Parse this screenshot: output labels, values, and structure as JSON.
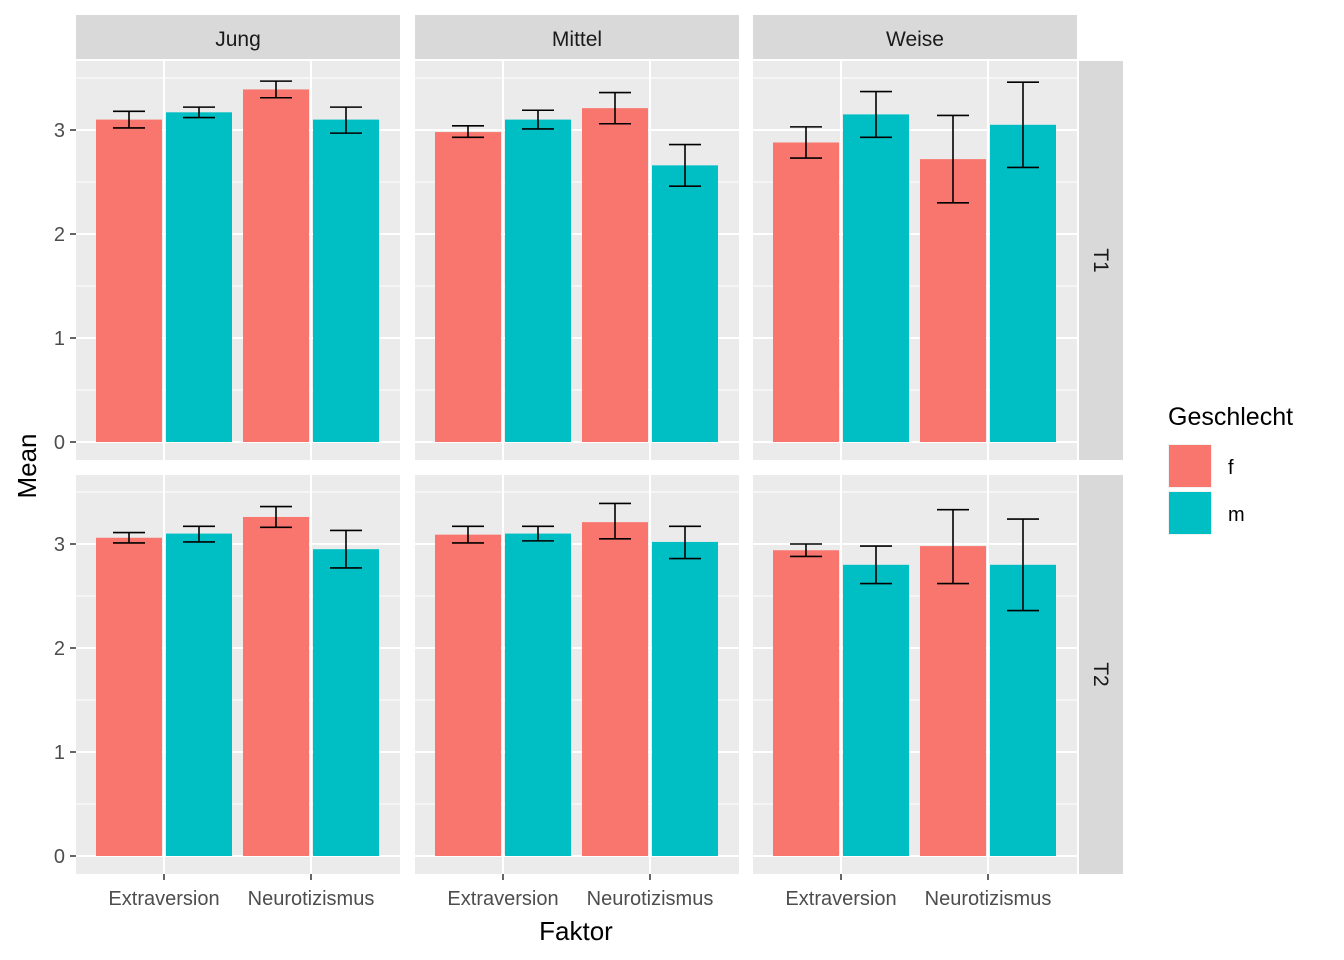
{
  "chart_data": {
    "type": "bar",
    "title": "",
    "xlabel": "Faktor",
    "ylabel": "Mean",
    "ylim": [
      0,
      3.5
    ],
    "yticks": [
      "0",
      "1",
      "2",
      "3"
    ],
    "categories": [
      "Extraversion",
      "Neurotizismus"
    ],
    "legend": {
      "title": "Geschlecht",
      "placement": "right",
      "items": [
        {
          "label": "f",
          "color": "#F8766D"
        },
        {
          "label": "m",
          "color": "#00BFC4"
        }
      ]
    },
    "columns": [
      "Jung",
      "Mittel",
      "Weise"
    ],
    "rows": [
      "T1",
      "T2"
    ],
    "grid": true,
    "panel_background": "#EBEBEB",
    "strip_background": "#D9D9D9",
    "panels": [
      {
        "column": "Jung",
        "row": "T1",
        "series": [
          {
            "name": "f",
            "values": [
              3.1,
              3.39
            ],
            "lower": [
              3.02,
              3.31
            ],
            "upper": [
              3.18,
              3.47
            ]
          },
          {
            "name": "m",
            "values": [
              3.17,
              3.1
            ],
            "lower": [
              3.12,
              2.97
            ],
            "upper": [
              3.22,
              3.22
            ]
          }
        ]
      },
      {
        "column": "Mittel",
        "row": "T1",
        "series": [
          {
            "name": "f",
            "values": [
              2.98,
              3.21
            ],
            "lower": [
              2.93,
              3.06
            ],
            "upper": [
              3.04,
              3.36
            ]
          },
          {
            "name": "m",
            "values": [
              3.1,
              2.66
            ],
            "lower": [
              3.01,
              2.46
            ],
            "upper": [
              3.19,
              2.86
            ]
          }
        ]
      },
      {
        "column": "Weise",
        "row": "T1",
        "series": [
          {
            "name": "f",
            "values": [
              2.88,
              2.72
            ],
            "lower": [
              2.73,
              2.3
            ],
            "upper": [
              3.03,
              3.14
            ]
          },
          {
            "name": "m",
            "values": [
              3.15,
              3.05
            ],
            "lower": [
              2.93,
              2.64
            ],
            "upper": [
              3.37,
              3.46
            ]
          }
        ]
      },
      {
        "column": "Jung",
        "row": "T2",
        "series": [
          {
            "name": "f",
            "values": [
              3.06,
              3.26
            ],
            "lower": [
              3.01,
              3.16
            ],
            "upper": [
              3.11,
              3.36
            ]
          },
          {
            "name": "m",
            "values": [
              3.1,
              2.95
            ],
            "lower": [
              3.02,
              2.77
            ],
            "upper": [
              3.17,
              3.13
            ]
          }
        ]
      },
      {
        "column": "Mittel",
        "row": "T2",
        "series": [
          {
            "name": "f",
            "values": [
              3.09,
              3.21
            ],
            "lower": [
              3.01,
              3.05
            ],
            "upper": [
              3.17,
              3.39
            ]
          },
          {
            "name": "m",
            "values": [
              3.1,
              3.02
            ],
            "lower": [
              3.03,
              2.86
            ],
            "upper": [
              3.17,
              3.17
            ]
          }
        ]
      },
      {
        "column": "Weise",
        "row": "T2",
        "series": [
          {
            "name": "f",
            "values": [
              2.94,
              2.98
            ],
            "lower": [
              2.88,
              2.62
            ],
            "upper": [
              3.0,
              3.33
            ]
          },
          {
            "name": "m",
            "values": [
              2.8,
              2.8
            ],
            "lower": [
              2.62,
              2.36
            ],
            "upper": [
              2.98,
              3.24
            ]
          }
        ]
      }
    ]
  }
}
